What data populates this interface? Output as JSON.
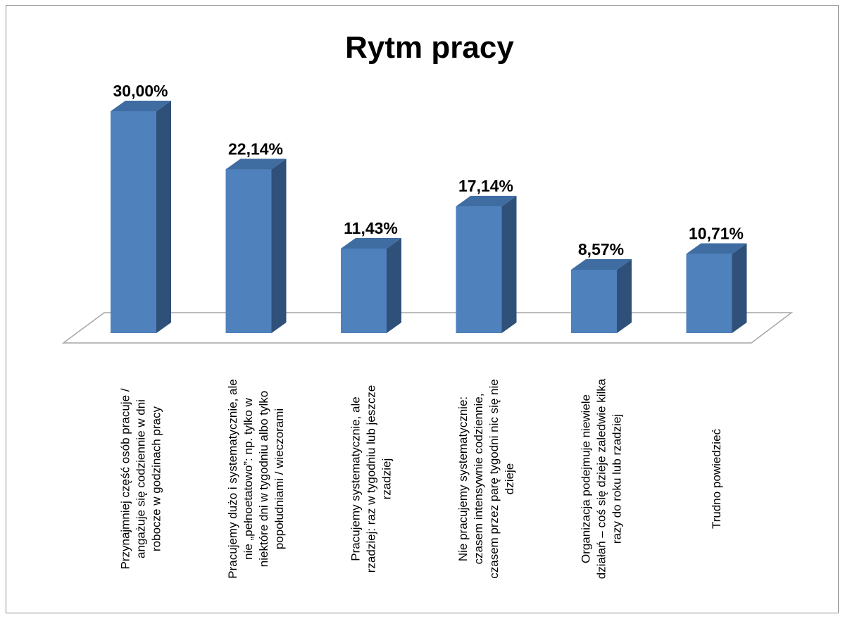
{
  "chart_data": {
    "type": "bar",
    "title": "Rytm pracy",
    "categories": [
      [
        "Przynajmniej część osób pracuje /",
        "angażuje się codziennie w dni",
        "robocze w godzinach pracy"
      ],
      [
        "Pracujemy dużo i systematycznie, ale",
        "nie „pełnoetatowo”: np. tylko w",
        "niektóre dni w tygodniu albo tylko",
        "popołudniami / wieczorami"
      ],
      [
        "Pracujemy systematycznie, ale",
        "rzadziej: raz w tygodniu lub jeszcze",
        "rzadziej"
      ],
      [
        "Nie pracujemy systematycznie:",
        "czasem intensywnie codziennie,",
        "czasem przez parę tygodni nic się nie",
        "dzieje"
      ],
      [
        "Organizacja podejmuje niewiele",
        "działań – coś się dzieje zaledwie kilka",
        "razy do roku lub rzadziej"
      ],
      [
        "Trudno powiedzieć"
      ]
    ],
    "values": [
      30.0,
      22.14,
      11.43,
      17.14,
      8.57,
      10.71
    ],
    "data_labels": [
      "30,00%",
      "22,14%",
      "11,43%",
      "17,14%",
      "8,57%",
      "10,71%"
    ],
    "ylim": [
      0,
      30
    ],
    "grid": false,
    "legend": "none",
    "colors": {
      "bar_front": "#4f81bd",
      "bar_side": "#2f5079",
      "bar_top": "#3f6da2",
      "floor": "#a6a6a6"
    }
  }
}
